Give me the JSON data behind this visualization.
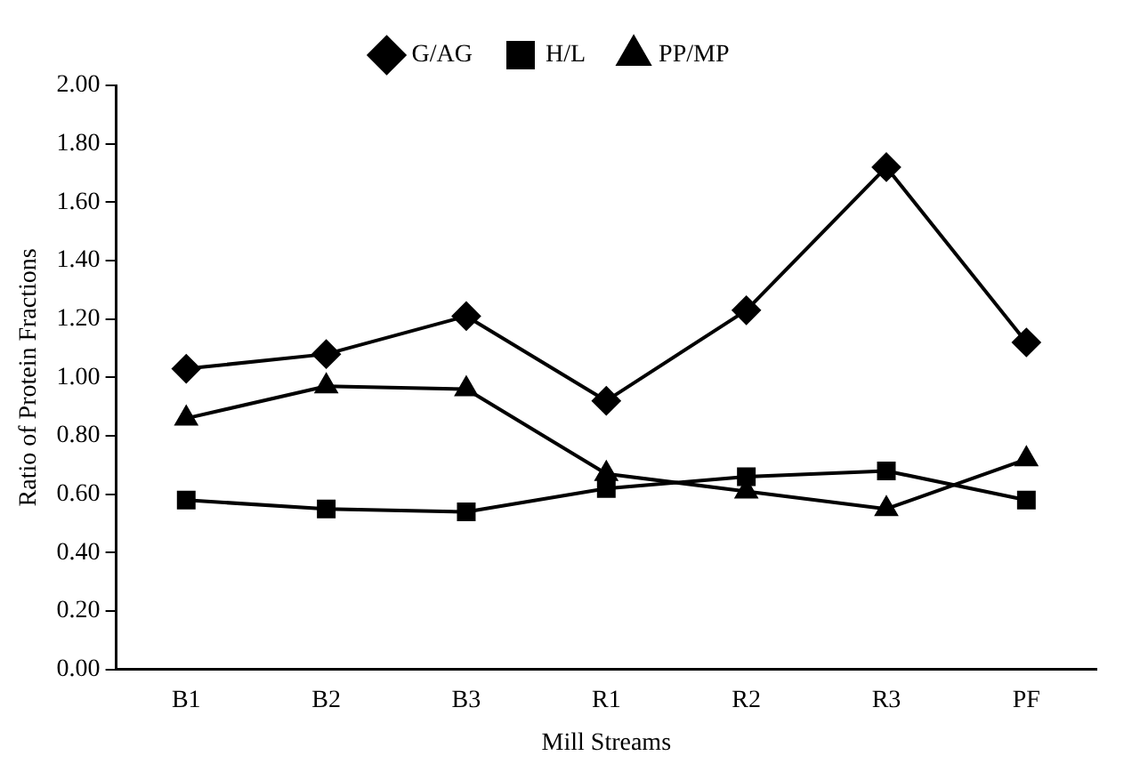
{
  "chart_data": {
    "type": "line",
    "xlabel": "Mill Streams",
    "ylabel": "Ratio of Protein Fractions",
    "categories": [
      "B1",
      "B2",
      "B3",
      "R1",
      "R2",
      "R3",
      "PF"
    ],
    "series": [
      {
        "name": "G/AG",
        "color": "#000000",
        "marker": "diamond",
        "values": [
          1.03,
          1.08,
          1.21,
          0.92,
          1.23,
          1.72,
          1.12
        ]
      },
      {
        "name": "H/L",
        "color": "#000000",
        "marker": "square",
        "values": [
          0.58,
          0.55,
          0.54,
          0.62,
          0.66,
          0.68,
          0.58
        ]
      },
      {
        "name": "PP/MP",
        "color": "#000000",
        "marker": "triangle",
        "values": [
          0.86,
          0.97,
          0.96,
          0.67,
          0.61,
          0.55,
          0.72
        ]
      }
    ],
    "ylim": [
      0,
      2
    ],
    "yticks": [
      {
        "value": 0,
        "label": "0.00"
      },
      {
        "value": 0.2,
        "label": "0.20"
      },
      {
        "value": 0.4,
        "label": "0.40"
      },
      {
        "value": 0.6,
        "label": "0.60"
      },
      {
        "value": 0.8,
        "label": "0.80"
      },
      {
        "value": 1,
        "label": "1.00"
      },
      {
        "value": 1.2,
        "label": "1.20"
      },
      {
        "value": 1.4,
        "label": "1.40"
      },
      {
        "value": 1.6,
        "label": "1.60"
      },
      {
        "value": 1.8,
        "label": "1.80"
      },
      {
        "value": 2,
        "label": "2.00"
      }
    ],
    "grid": false,
    "legend": "top",
    "line_style": "solid"
  }
}
